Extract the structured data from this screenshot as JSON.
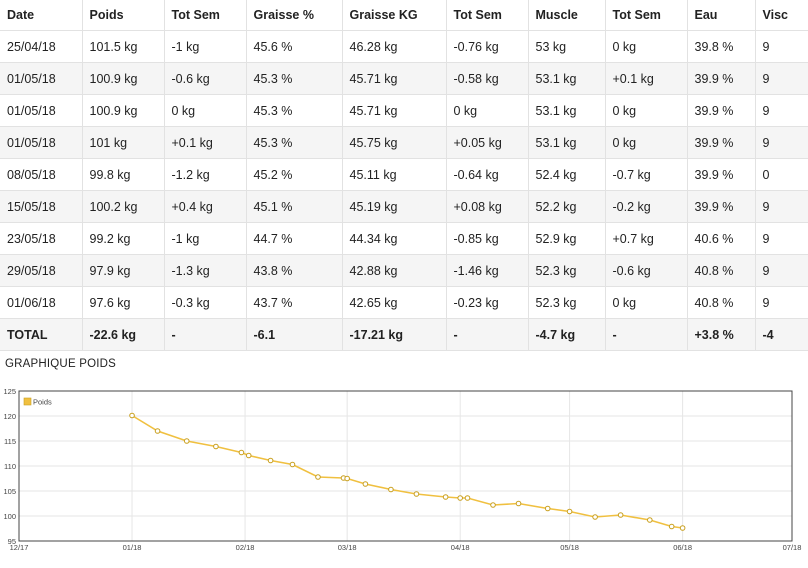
{
  "table": {
    "headers": [
      "Date",
      "Poids",
      "Tot Sem",
      "Graisse %",
      "Graisse KG",
      "Tot Sem",
      "Muscle",
      "Tot Sem",
      "Eau",
      "Visc"
    ],
    "rows": [
      [
        "25/04/18",
        "101.5 kg",
        "-1 kg",
        "45.6 %",
        "46.28 kg",
        "-0.76 kg",
        "53 kg",
        "0 kg",
        "39.8 %",
        "9"
      ],
      [
        "01/05/18",
        "100.9 kg",
        "-0.6 kg",
        "45.3 %",
        "45.71 kg",
        "-0.58 kg",
        "53.1 kg",
        "+0.1 kg",
        "39.9 %",
        "9"
      ],
      [
        "01/05/18",
        "100.9 kg",
        "0 kg",
        "45.3 %",
        "45.71 kg",
        "0 kg",
        "53.1 kg",
        "0 kg",
        "39.9 %",
        "9"
      ],
      [
        "01/05/18",
        "101 kg",
        "+0.1 kg",
        "45.3 %",
        "45.75 kg",
        "+0.05 kg",
        "53.1 kg",
        "0 kg",
        "39.9 %",
        "9"
      ],
      [
        "08/05/18",
        "99.8 kg",
        "-1.2 kg",
        "45.2 %",
        "45.11 kg",
        "-0.64 kg",
        "52.4 kg",
        "-0.7 kg",
        "39.9 %",
        "0"
      ],
      [
        "15/05/18",
        "100.2 kg",
        "+0.4 kg",
        "45.1 %",
        "45.19 kg",
        "+0.08 kg",
        "52.2 kg",
        "-0.2 kg",
        "39.9 %",
        "9"
      ],
      [
        "23/05/18",
        "99.2 kg",
        "-1 kg",
        "44.7 %",
        "44.34 kg",
        "-0.85 kg",
        "52.9 kg",
        "+0.7 kg",
        "40.6 %",
        "9"
      ],
      [
        "29/05/18",
        "97.9 kg",
        "-1.3 kg",
        "43.8 %",
        "42.88 kg",
        "-1.46 kg",
        "52.3 kg",
        "-0.6 kg",
        "40.8 %",
        "9"
      ],
      [
        "01/06/18",
        "97.6 kg",
        "-0.3 kg",
        "43.7 %",
        "42.65 kg",
        "-0.23 kg",
        "52.3 kg",
        "0 kg",
        "40.8 %",
        "9"
      ]
    ],
    "total": [
      "TOTAL",
      "-22.6 kg",
      "-",
      "-6.1",
      "-17.21 kg",
      "-",
      "-4.7 kg",
      "-",
      "+3.8 %",
      "-4"
    ]
  },
  "section_title": "GRAPHIQUE POIDS",
  "chart_data": {
    "type": "line",
    "legend": "Poids",
    "legend_position": "top-left",
    "color": "#f0c040",
    "grid": true,
    "ylim": [
      95,
      125
    ],
    "yticks": [
      95,
      100,
      105,
      110,
      115,
      120,
      125
    ],
    "xlim": [
      "2017-12-01",
      "2018-07-01"
    ],
    "xticks": [
      {
        "date": "2017-12-01",
        "label": "12/17"
      },
      {
        "date": "2018-01-01",
        "label": "01/18"
      },
      {
        "date": "2018-02-01",
        "label": "02/18"
      },
      {
        "date": "2018-03-01",
        "label": "03/18"
      },
      {
        "date": "2018-04-01",
        "label": "04/18"
      },
      {
        "date": "2018-05-01",
        "label": "05/18"
      },
      {
        "date": "2018-06-01",
        "label": "06/18"
      },
      {
        "date": "2018-07-01",
        "label": "07/18"
      }
    ],
    "series": [
      {
        "name": "Poids",
        "points": [
          {
            "x": "2018-01-01",
            "y": 120.1
          },
          {
            "x": "2018-01-08",
            "y": 117.0
          },
          {
            "x": "2018-01-16",
            "y": 115.0
          },
          {
            "x": "2018-01-24",
            "y": 113.9
          },
          {
            "x": "2018-01-31",
            "y": 112.7
          },
          {
            "x": "2018-02-02",
            "y": 112.1
          },
          {
            "x": "2018-02-08",
            "y": 111.1
          },
          {
            "x": "2018-02-14",
            "y": 110.3
          },
          {
            "x": "2018-02-21",
            "y": 107.8
          },
          {
            "x": "2018-02-28",
            "y": 107.6
          },
          {
            "x": "2018-03-01",
            "y": 107.5
          },
          {
            "x": "2018-03-06",
            "y": 106.4
          },
          {
            "x": "2018-03-13",
            "y": 105.3
          },
          {
            "x": "2018-03-20",
            "y": 104.4
          },
          {
            "x": "2018-03-28",
            "y": 103.8
          },
          {
            "x": "2018-04-01",
            "y": 103.6
          },
          {
            "x": "2018-04-03",
            "y": 103.6
          },
          {
            "x": "2018-04-10",
            "y": 102.2
          },
          {
            "x": "2018-04-17",
            "y": 102.5
          },
          {
            "x": "2018-04-25",
            "y": 101.5
          },
          {
            "x": "2018-05-01",
            "y": 100.9
          },
          {
            "x": "2018-05-08",
            "y": 99.8
          },
          {
            "x": "2018-05-15",
            "y": 100.2
          },
          {
            "x": "2018-05-23",
            "y": 99.2
          },
          {
            "x": "2018-05-29",
            "y": 97.9
          },
          {
            "x": "2018-06-01",
            "y": 97.6
          }
        ]
      }
    ]
  }
}
